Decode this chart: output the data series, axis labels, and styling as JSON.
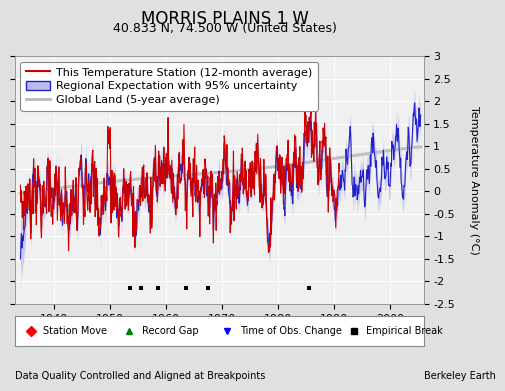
{
  "title": "MORRIS PLAINS 1 W",
  "subtitle": "40.833 N, 74.500 W (United States)",
  "ylabel": "Temperature Anomaly (°C)",
  "xlabel_left": "Data Quality Controlled and Aligned at Breakpoints",
  "xlabel_right": "Berkeley Earth",
  "ylim": [
    -2.5,
    3.0
  ],
  "xlim": [
    1933,
    2006
  ],
  "yticks": [
    -2.5,
    -2.0,
    -1.5,
    -1.0,
    -0.5,
    0.0,
    0.5,
    1.0,
    1.5,
    2.0,
    2.5,
    3.0
  ],
  "xticks": [
    1940,
    1950,
    1960,
    1970,
    1980,
    1990,
    2000
  ],
  "station_color": "#CC0000",
  "regional_color": "#2222CC",
  "regional_fill_color": "#BBBBEE",
  "global_color": "#BBBBBB",
  "plot_bg_color": "#F0F0F0",
  "outer_bg_color": "#E0E0E0",
  "title_fontsize": 12,
  "subtitle_fontsize": 9,
  "axis_fontsize": 8,
  "tick_fontsize": 8,
  "legend_fontsize": 8,
  "empirical_breaks": [
    1953.5,
    1955.5,
    1958.5,
    1963.5,
    1967.5,
    1985.5
  ],
  "obs_change_year": 1967,
  "random_seed_regional": 10,
  "random_seed_station": 7
}
